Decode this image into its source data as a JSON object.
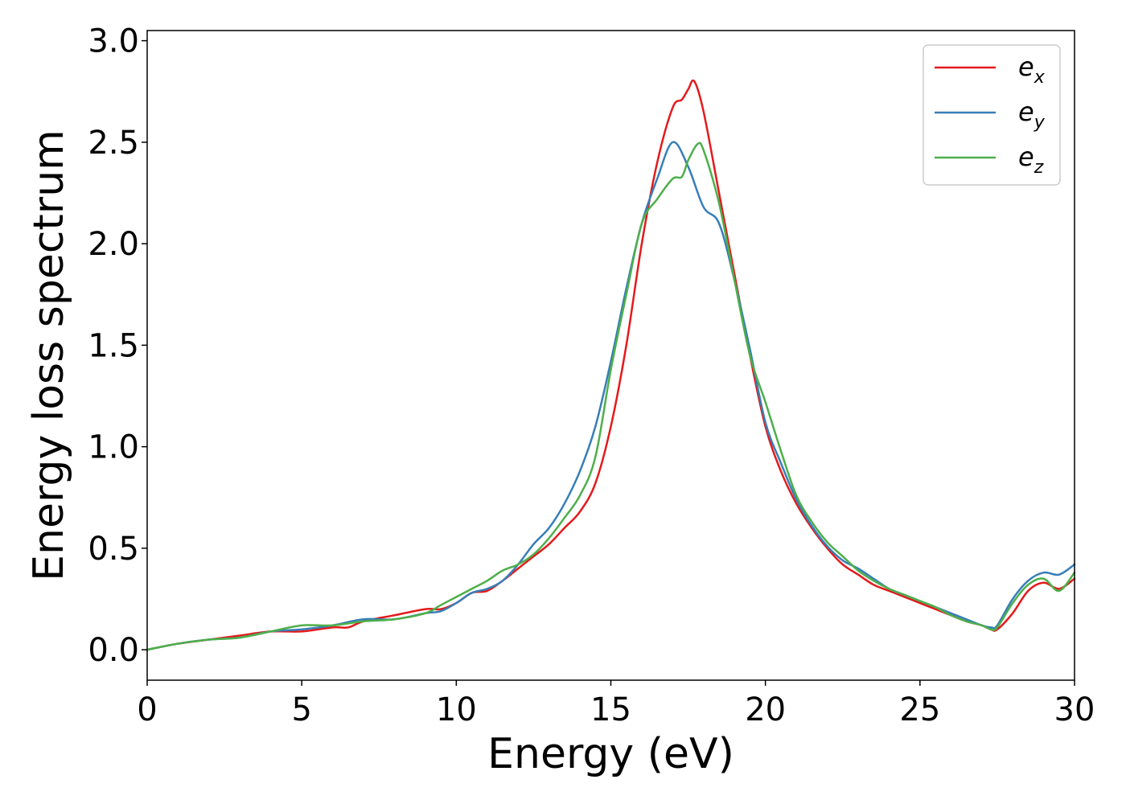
{
  "chart_data": {
    "type": "line",
    "xlabel": "Energy (eV)",
    "ylabel": "Energy loss spectrum",
    "xlim": [
      0,
      30
    ],
    "ylim": [
      -0.15,
      3.05
    ],
    "xticks": [
      0,
      5,
      10,
      15,
      20,
      25,
      30
    ],
    "xtick_labels": [
      "0",
      "5",
      "10",
      "15",
      "20",
      "25",
      "30"
    ],
    "yticks": [
      0.0,
      0.5,
      1.0,
      1.5,
      2.0,
      2.5,
      3.0
    ],
    "ytick_labels": [
      "0.0",
      "0.5",
      "1.0",
      "1.5",
      "2.0",
      "2.5",
      "3.0"
    ],
    "grid": false,
    "legend_position": "top-right",
    "series": [
      {
        "name": "e_x",
        "legend_base": "e",
        "legend_sub": "x",
        "color": "#e41a1c",
        "x": [
          0,
          1,
          2,
          3,
          4,
          5,
          6,
          6.5,
          7,
          8,
          9,
          9.5,
          10,
          10.5,
          11,
          11.5,
          12,
          12.5,
          13,
          13.5,
          14,
          14.5,
          15,
          15.5,
          16,
          16.5,
          17,
          17.3,
          17.5,
          17.7,
          18,
          18.5,
          19,
          19.5,
          20,
          20.5,
          21,
          21.5,
          22,
          22.5,
          23,
          23.5,
          24,
          24.5,
          25,
          25.5,
          26,
          26.5,
          27,
          27.3,
          27.5,
          28,
          28.5,
          29,
          29.5,
          30
        ],
        "y": [
          0.0,
          0.03,
          0.05,
          0.07,
          0.09,
          0.09,
          0.11,
          0.11,
          0.14,
          0.17,
          0.2,
          0.2,
          0.23,
          0.28,
          0.29,
          0.34,
          0.4,
          0.46,
          0.52,
          0.6,
          0.68,
          0.82,
          1.1,
          1.5,
          2.0,
          2.4,
          2.67,
          2.71,
          2.76,
          2.8,
          2.65,
          2.25,
          1.85,
          1.45,
          1.1,
          0.88,
          0.72,
          0.6,
          0.5,
          0.42,
          0.37,
          0.32,
          0.29,
          0.26,
          0.23,
          0.2,
          0.17,
          0.14,
          0.12,
          0.1,
          0.1,
          0.18,
          0.29,
          0.33,
          0.3,
          0.35
        ]
      },
      {
        "name": "e_y",
        "legend_base": "e",
        "legend_sub": "y",
        "color": "#377eb8",
        "x": [
          0,
          1,
          2,
          3,
          4,
          5,
          6,
          7,
          8,
          9,
          9.5,
          10,
          10.5,
          11,
          11.5,
          12,
          12.5,
          13,
          13.5,
          14,
          14.5,
          15,
          15.5,
          16,
          16.5,
          17,
          17.5,
          18,
          18.5,
          19,
          19.5,
          20,
          20.5,
          21,
          21.5,
          22,
          22.5,
          23,
          23.5,
          24,
          24.5,
          25,
          25.5,
          26,
          26.5,
          27,
          27.3,
          27.5,
          28,
          28.5,
          29,
          29.5,
          30
        ],
        "y": [
          0.0,
          0.03,
          0.05,
          0.06,
          0.09,
          0.1,
          0.12,
          0.15,
          0.15,
          0.18,
          0.19,
          0.23,
          0.28,
          0.3,
          0.34,
          0.42,
          0.52,
          0.6,
          0.72,
          0.88,
          1.1,
          1.42,
          1.78,
          2.1,
          2.32,
          2.5,
          2.38,
          2.18,
          2.1,
          1.82,
          1.48,
          1.12,
          0.92,
          0.74,
          0.61,
          0.51,
          0.44,
          0.4,
          0.35,
          0.3,
          0.27,
          0.24,
          0.21,
          0.18,
          0.15,
          0.12,
          0.11,
          0.12,
          0.25,
          0.34,
          0.38,
          0.37,
          0.42
        ]
      },
      {
        "name": "e_z",
        "legend_base": "e",
        "legend_sub": "z",
        "color": "#4daf4a",
        "x": [
          0,
          1,
          2,
          3,
          4,
          5,
          6,
          7,
          8,
          9,
          9.5,
          10,
          10.5,
          11,
          11.5,
          12,
          12.5,
          13,
          13.5,
          14,
          14.5,
          15,
          15.5,
          16,
          16.5,
          17,
          17.3,
          17.5,
          17.8,
          18,
          18.5,
          19,
          19.5,
          20,
          20.5,
          21,
          21.5,
          22,
          22.5,
          23,
          23.5,
          24,
          24.5,
          25,
          25.5,
          26,
          26.5,
          27,
          27.3,
          27.5,
          28,
          28.5,
          29,
          29.5,
          30
        ],
        "y": [
          0.0,
          0.03,
          0.05,
          0.06,
          0.09,
          0.12,
          0.12,
          0.14,
          0.15,
          0.18,
          0.22,
          0.26,
          0.3,
          0.34,
          0.39,
          0.42,
          0.47,
          0.55,
          0.65,
          0.76,
          0.95,
          1.38,
          1.75,
          2.1,
          2.22,
          2.32,
          2.33,
          2.41,
          2.49,
          2.46,
          2.2,
          1.82,
          1.45,
          1.22,
          0.98,
          0.76,
          0.63,
          0.53,
          0.46,
          0.39,
          0.34,
          0.3,
          0.27,
          0.24,
          0.21,
          0.17,
          0.14,
          0.12,
          0.1,
          0.11,
          0.23,
          0.32,
          0.35,
          0.29,
          0.38
        ]
      }
    ]
  }
}
